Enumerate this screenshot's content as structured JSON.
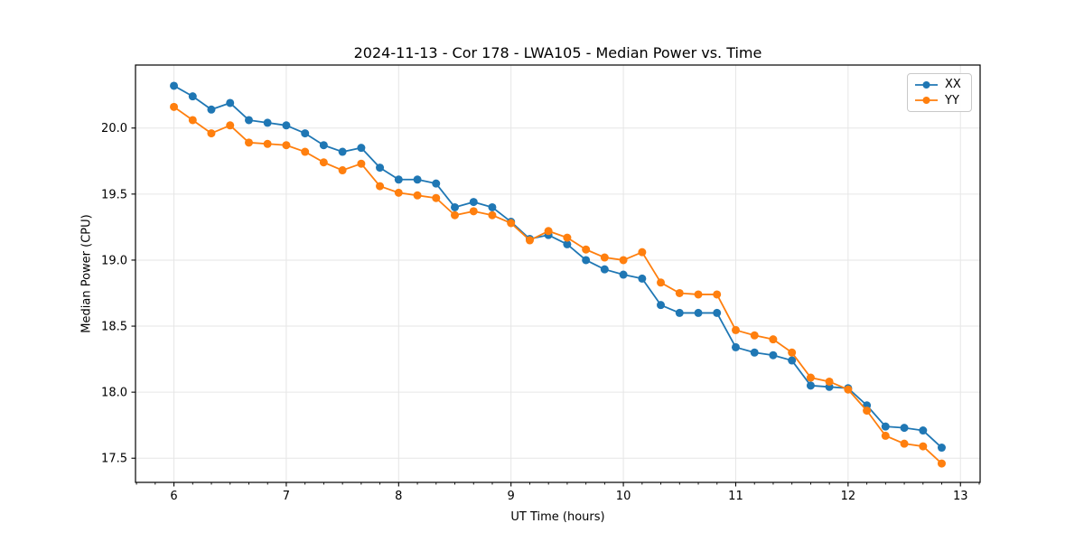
{
  "chart_data": {
    "type": "line",
    "title": "2024-11-13 - Cor 178 - LWA105 - Median Power vs. Time",
    "xlabel": "UT Time (hours)",
    "ylabel": "Median Power (CPU)",
    "xlim": [
      5.658,
      13.175
    ],
    "ylim": [
      17.317,
      20.477
    ],
    "x_ticks": [
      6,
      7,
      8,
      9,
      10,
      11,
      12,
      13
    ],
    "x_tick_labels": [
      "6",
      "7",
      "8",
      "9",
      "10",
      "11",
      "12",
      "13"
    ],
    "x_minor_tick_step": 0.16667,
    "y_ticks": [
      17.5,
      18.0,
      18.5,
      19.0,
      19.5,
      20.0
    ],
    "y_tick_labels": [
      "17.5",
      "18.0",
      "18.5",
      "19.0",
      "19.5",
      "20.0"
    ],
    "grid": "major",
    "grid_color": "#e6e6e6",
    "legend_position": "upper right",
    "x": [
      6.0,
      6.167,
      6.333,
      6.5,
      6.667,
      6.833,
      7.0,
      7.167,
      7.333,
      7.5,
      7.667,
      7.833,
      8.0,
      8.167,
      8.333,
      8.5,
      8.667,
      8.833,
      9.0,
      9.167,
      9.333,
      9.5,
      9.667,
      9.833,
      10.0,
      10.167,
      10.333,
      10.5,
      10.667,
      10.833,
      11.0,
      11.167,
      11.333,
      11.5,
      11.667,
      11.833,
      12.0,
      12.167,
      12.333,
      12.5,
      12.667,
      12.833
    ],
    "series": [
      {
        "name": "XX",
        "color": "#1f77b4",
        "marker": "circle",
        "values": [
          20.32,
          20.24,
          20.14,
          20.19,
          20.06,
          20.04,
          20.02,
          19.96,
          19.87,
          19.82,
          19.85,
          19.7,
          19.61,
          19.61,
          19.58,
          19.4,
          19.44,
          19.4,
          19.29,
          19.16,
          19.19,
          19.12,
          19.0,
          18.93,
          18.89,
          18.86,
          18.66,
          18.6,
          18.6,
          18.6,
          18.34,
          18.3,
          18.28,
          18.24,
          18.05,
          18.04,
          18.03,
          17.9,
          17.74,
          17.73,
          17.71,
          17.58
        ]
      },
      {
        "name": "YY",
        "color": "#ff7f0e",
        "marker": "circle",
        "values": [
          20.16,
          20.06,
          19.96,
          20.02,
          19.89,
          19.88,
          19.87,
          19.82,
          19.74,
          19.68,
          19.73,
          19.56,
          19.51,
          19.49,
          19.47,
          19.34,
          19.37,
          19.34,
          19.28,
          19.15,
          19.22,
          19.17,
          19.08,
          19.02,
          19.0,
          19.06,
          18.83,
          18.75,
          18.74,
          18.74,
          18.47,
          18.43,
          18.4,
          18.3,
          18.11,
          18.08,
          18.02,
          17.86,
          17.67,
          17.61,
          17.59,
          17.46
        ]
      }
    ]
  }
}
